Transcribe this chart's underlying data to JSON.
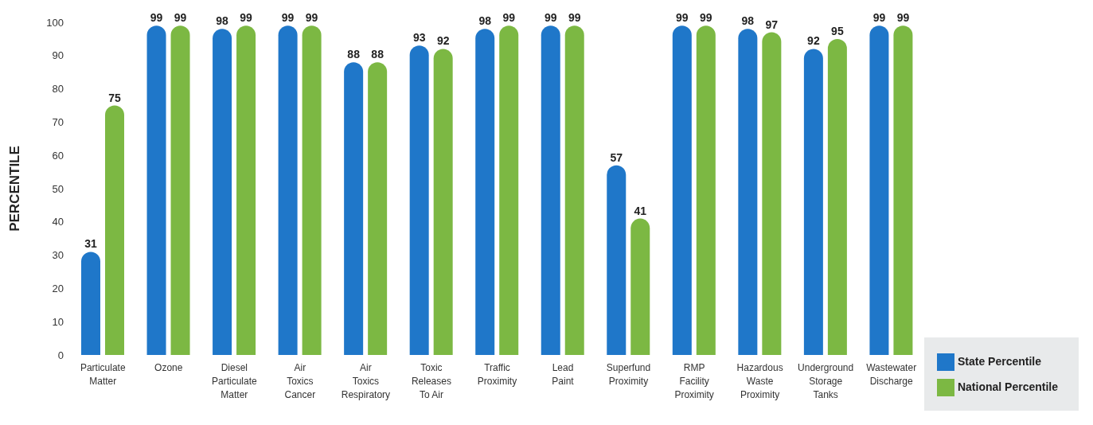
{
  "chart_data": {
    "type": "bar",
    "ylabel": "PERCENTILE",
    "categories": [
      "Particulate Matter",
      "Ozone",
      "Diesel Particulate Matter",
      "Air Toxics Cancer",
      "Air Toxics Respiratory",
      "Toxic Releases To Air",
      "Traffic Proximity",
      "Lead Paint",
      "Superfund Proximity",
      "RMP Facility Proximity",
      "Hazardous Waste Proximity",
      "Underground Storage Tanks",
      "Wastewater Discharge"
    ],
    "series": [
      {
        "name": "State Percentile",
        "color": "#1f77c9",
        "values": [
          31,
          99,
          98,
          99,
          88,
          93,
          98,
          99,
          57,
          99,
          98,
          92,
          99
        ]
      },
      {
        "name": "National Percentile",
        "color": "#7cb843",
        "values": [
          75,
          99,
          99,
          99,
          88,
          92,
          99,
          99,
          41,
          99,
          97,
          95,
          99
        ]
      }
    ],
    "ylim": [
      0,
      100
    ],
    "yticks": [
      0,
      10,
      20,
      30,
      40,
      50,
      60,
      70,
      80,
      90,
      100
    ],
    "legend": "bottom right",
    "data_labels": true
  }
}
